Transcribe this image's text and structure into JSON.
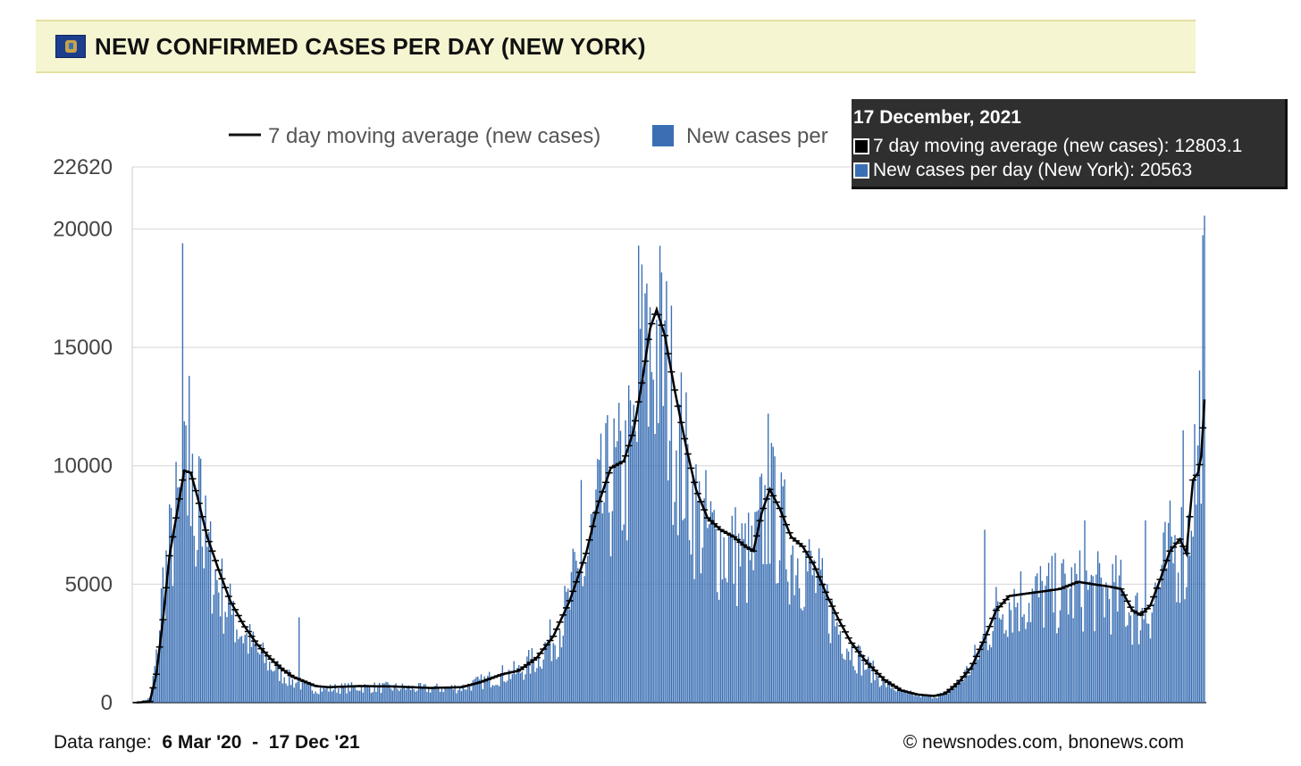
{
  "header": {
    "title": "NEW CONFIRMED CASES PER DAY (NEW YORK)",
    "flag_icon": "new-york-flag-icon"
  },
  "chart_data": {
    "type": "bar",
    "title": "NEW CONFIRMED CASES PER DAY (NEW YORK)",
    "ylim": [
      0,
      22620
    ],
    "y_ticks": [
      "22620",
      "20000",
      "15000",
      "10000",
      "5000",
      "0"
    ],
    "y_tick_values": [
      22620,
      20000,
      15000,
      10000,
      5000,
      0
    ],
    "grid": true,
    "legend_position": "top",
    "series": [
      {
        "name": "7 day moving average (new cases)",
        "type": "line",
        "color": "#000000",
        "keypoints": [
          [
            "2020-03-06",
            0
          ],
          [
            "2020-03-14",
            50
          ],
          [
            "2020-03-18",
            1200
          ],
          [
            "2020-03-22",
            3500
          ],
          [
            "2020-03-26",
            6200
          ],
          [
            "2020-03-30",
            7800
          ],
          [
            "2020-04-04",
            9800
          ],
          [
            "2020-04-08",
            9700
          ],
          [
            "2020-04-12",
            8700
          ],
          [
            "2020-04-18",
            7000
          ],
          [
            "2020-04-25",
            5600
          ],
          [
            "2020-05-02",
            4300
          ],
          [
            "2020-05-10",
            3300
          ],
          [
            "2020-05-18",
            2500
          ],
          [
            "2020-05-26",
            1900
          ],
          [
            "2020-06-02",
            1450
          ],
          [
            "2020-06-09",
            1100
          ],
          [
            "2020-06-16",
            900
          ],
          [
            "2020-06-23",
            700
          ],
          [
            "2020-07-01",
            650
          ],
          [
            "2020-07-20",
            700
          ],
          [
            "2020-08-10",
            680
          ],
          [
            "2020-09-01",
            620
          ],
          [
            "2020-09-20",
            650
          ],
          [
            "2020-10-01",
            850
          ],
          [
            "2020-10-15",
            1200
          ],
          [
            "2020-10-25",
            1350
          ],
          [
            "2020-11-05",
            1900
          ],
          [
            "2020-11-15",
            2800
          ],
          [
            "2020-11-25",
            4300
          ],
          [
            "2020-12-05",
            6300
          ],
          [
            "2020-12-12",
            8300
          ],
          [
            "2020-12-20",
            9900
          ],
          [
            "2020-12-28",
            10200
          ],
          [
            "2021-01-03",
            11500
          ],
          [
            "2021-01-08",
            13500
          ],
          [
            "2021-01-13",
            15800
          ],
          [
            "2021-01-17",
            16600
          ],
          [
            "2021-01-22",
            15500
          ],
          [
            "2021-01-28",
            13200
          ],
          [
            "2021-02-04",
            10800
          ],
          [
            "2021-02-10",
            9000
          ],
          [
            "2021-02-17",
            7800
          ],
          [
            "2021-02-25",
            7300
          ],
          [
            "2021-03-05",
            7000
          ],
          [
            "2021-03-12",
            6600
          ],
          [
            "2021-03-17",
            6400
          ],
          [
            "2021-03-22",
            8000
          ],
          [
            "2021-03-27",
            9000
          ],
          [
            "2021-04-02",
            8200
          ],
          [
            "2021-04-09",
            7000
          ],
          [
            "2021-04-16",
            6600
          ],
          [
            "2021-04-23",
            5800
          ],
          [
            "2021-05-01",
            4500
          ],
          [
            "2021-05-08",
            3500
          ],
          [
            "2021-05-15",
            2600
          ],
          [
            "2021-05-25",
            1700
          ],
          [
            "2021-06-05",
            950
          ],
          [
            "2021-06-15",
            520
          ],
          [
            "2021-06-25",
            340
          ],
          [
            "2021-07-05",
            280
          ],
          [
            "2021-07-12",
            380
          ],
          [
            "2021-07-20",
            850
          ],
          [
            "2021-07-28",
            1500
          ],
          [
            "2021-08-05",
            2700
          ],
          [
            "2021-08-12",
            3900
          ],
          [
            "2021-08-20",
            4500
          ],
          [
            "2021-08-30",
            4600
          ],
          [
            "2021-09-10",
            4700
          ],
          [
            "2021-09-20",
            4800
          ],
          [
            "2021-10-01",
            5100
          ],
          [
            "2021-10-10",
            5000
          ],
          [
            "2021-10-20",
            4900
          ],
          [
            "2021-10-27",
            4800
          ],
          [
            "2021-11-03",
            3900
          ],
          [
            "2021-11-08",
            3700
          ],
          [
            "2021-11-14",
            4100
          ],
          [
            "2021-11-20",
            5200
          ],
          [
            "2021-11-26",
            6400
          ],
          [
            "2021-12-02",
            6900
          ],
          [
            "2021-12-06",
            6300
          ],
          [
            "2021-12-10",
            9400
          ],
          [
            "2021-12-13",
            9700
          ],
          [
            "2021-12-15",
            10400
          ],
          [
            "2021-12-17",
            12803.1
          ]
        ]
      },
      {
        "name": "New cases per day (New York)",
        "type": "bar",
        "color": "#3a6fb3",
        "keypoints": [
          [
            "2020-03-06",
            0
          ],
          [
            "2020-03-14",
            200
          ],
          [
            "2020-03-18",
            2000
          ],
          [
            "2020-03-22",
            5500
          ],
          [
            "2020-03-26",
            7000
          ],
          [
            "2020-03-30",
            8500
          ],
          [
            "2020-04-04",
            10000
          ],
          [
            "2020-04-08",
            9500
          ],
          [
            "2020-04-12",
            8500
          ],
          [
            "2020-04-18",
            7000
          ],
          [
            "2020-04-25",
            5500
          ],
          [
            "2020-05-02",
            4200
          ],
          [
            "2020-05-10",
            3200
          ],
          [
            "2020-05-18",
            2400
          ],
          [
            "2020-05-26",
            1800
          ],
          [
            "2020-06-02",
            1400
          ],
          [
            "2020-06-09",
            1000
          ],
          [
            "2020-06-16",
            800
          ],
          [
            "2020-06-23",
            650
          ],
          [
            "2020-07-01",
            650
          ],
          [
            "2020-07-20",
            720
          ],
          [
            "2020-08-10",
            700
          ],
          [
            "2020-09-01",
            650
          ],
          [
            "2020-09-20",
            700
          ],
          [
            "2020-10-01",
            950
          ],
          [
            "2020-10-15",
            1300
          ],
          [
            "2020-10-25",
            1450
          ],
          [
            "2020-11-05",
            2100
          ],
          [
            "2020-11-15",
            3000
          ],
          [
            "2020-11-25",
            4600
          ],
          [
            "2020-12-05",
            6600
          ],
          [
            "2020-12-12",
            8800
          ],
          [
            "2020-12-20",
            10200
          ],
          [
            "2020-12-28",
            10500
          ],
          [
            "2021-01-03",
            12000
          ],
          [
            "2021-01-08",
            14000
          ],
          [
            "2021-01-13",
            16200
          ],
          [
            "2021-01-17",
            16800
          ],
          [
            "2021-01-22",
            15700
          ],
          [
            "2021-01-28",
            13200
          ],
          [
            "2021-02-04",
            10800
          ],
          [
            "2021-02-10",
            9000
          ],
          [
            "2021-02-17",
            7900
          ],
          [
            "2021-02-25",
            7400
          ],
          [
            "2021-03-05",
            7000
          ],
          [
            "2021-03-12",
            6800
          ],
          [
            "2021-03-17",
            6600
          ],
          [
            "2021-03-22",
            8400
          ],
          [
            "2021-03-27",
            9200
          ],
          [
            "2021-04-02",
            8200
          ],
          [
            "2021-04-09",
            7100
          ],
          [
            "2021-04-16",
            6700
          ],
          [
            "2021-04-23",
            5800
          ],
          [
            "2021-05-01",
            4500
          ],
          [
            "2021-05-08",
            3500
          ],
          [
            "2021-05-15",
            2600
          ],
          [
            "2021-05-25",
            1700
          ],
          [
            "2021-06-05",
            950
          ],
          [
            "2021-06-15",
            520
          ],
          [
            "2021-06-25",
            340
          ],
          [
            "2021-07-05",
            300
          ],
          [
            "2021-07-12",
            420
          ],
          [
            "2021-07-20",
            950
          ],
          [
            "2021-07-28",
            1700
          ],
          [
            "2021-08-05",
            3000
          ],
          [
            "2021-08-12",
            4200
          ],
          [
            "2021-08-20",
            4800
          ],
          [
            "2021-08-30",
            4900
          ],
          [
            "2021-09-10",
            5000
          ],
          [
            "2021-09-20",
            5100
          ],
          [
            "2021-10-01",
            5300
          ],
          [
            "2021-10-10",
            5200
          ],
          [
            "2021-10-20",
            5100
          ],
          [
            "2021-10-27",
            5000
          ],
          [
            "2021-11-03",
            4200
          ],
          [
            "2021-11-08",
            4000
          ],
          [
            "2021-11-14",
            4500
          ],
          [
            "2021-11-20",
            5700
          ],
          [
            "2021-11-26",
            6900
          ],
          [
            "2021-12-02",
            7400
          ],
          [
            "2021-12-06",
            6800
          ],
          [
            "2021-12-10",
            10800
          ],
          [
            "2021-12-13",
            11000
          ],
          [
            "2021-12-15",
            15000
          ],
          [
            "2021-12-16",
            17500
          ],
          [
            "2021-12-17",
            20563
          ]
        ],
        "spikes": [
          [
            "2020-04-03",
            19400
          ],
          [
            "2020-04-07",
            13800
          ],
          [
            "2020-04-13",
            10400
          ],
          [
            "2020-04-14",
            10300
          ],
          [
            "2020-05-04",
            4300
          ],
          [
            "2020-06-13",
            3600
          ],
          [
            "2020-11-27",
            6500
          ],
          [
            "2020-12-02",
            9400
          ],
          [
            "2021-01-06",
            19300
          ],
          [
            "2021-01-08",
            18500
          ],
          [
            "2021-01-11",
            17700
          ],
          [
            "2021-03-26",
            12200
          ],
          [
            "2021-03-30",
            10400
          ],
          [
            "2021-08-05",
            7300
          ],
          [
            "2021-10-05",
            7700
          ],
          [
            "2021-11-11",
            7700
          ],
          [
            "2021-12-04",
            11500
          ]
        ]
      }
    ],
    "legend": [
      "7 day moving average (new cases)",
      "New cases per"
    ],
    "x_range": [
      "2020-03-06",
      "2021-12-17"
    ]
  },
  "tooltip": {
    "date": "17 December, 2021",
    "row1": "7 day moving average (new cases): 12803.1",
    "row2": "New cases per day (New York): 20563"
  },
  "footer": {
    "range_label": "Data range:",
    "range_value": "6 Mar '20  -  17 Dec '21",
    "credit": "© newsnodes.com, bnonews.com"
  }
}
